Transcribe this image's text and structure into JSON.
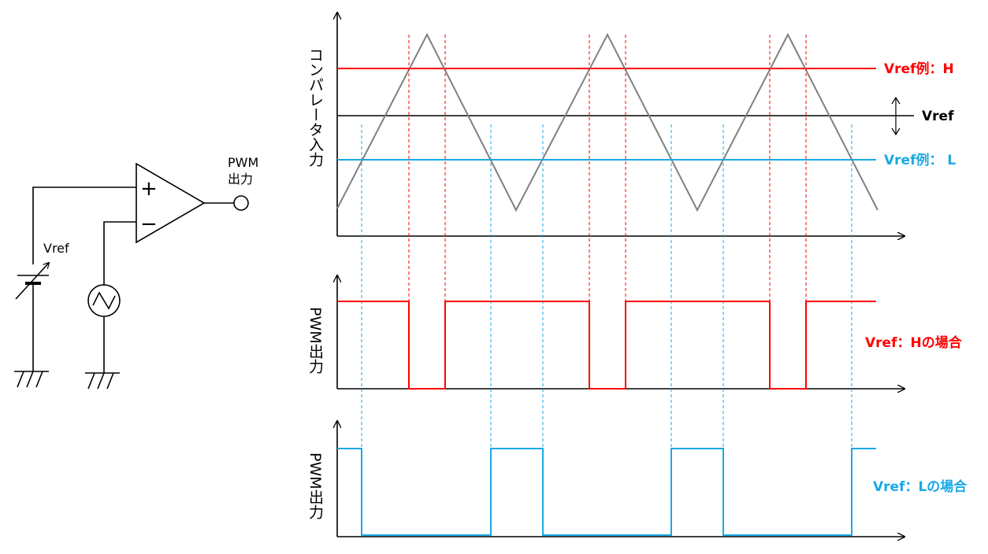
{
  "colors": {
    "black": "#000000",
    "red": "#ff0000",
    "cyan": "#1aa9e6",
    "triangle": "#808080"
  },
  "circuit": {
    "output_label_line1": "PWM",
    "output_label_line2": "出力",
    "vref_label": "Vref",
    "plus_sign": "+",
    "minus_sign": "−"
  },
  "top_plot": {
    "ylabel": "コンパレータ入力",
    "vref_h_label": "Vref例：H",
    "vref_label": "Vref",
    "vref_l_label": "Vref例： L"
  },
  "middle_plot": {
    "ylabel": "PWM出力",
    "annotation": "Vref：Hの場合"
  },
  "bottom_plot": {
    "ylabel": "PWM出力",
    "annotation": "Vref：Lの場合"
  }
}
